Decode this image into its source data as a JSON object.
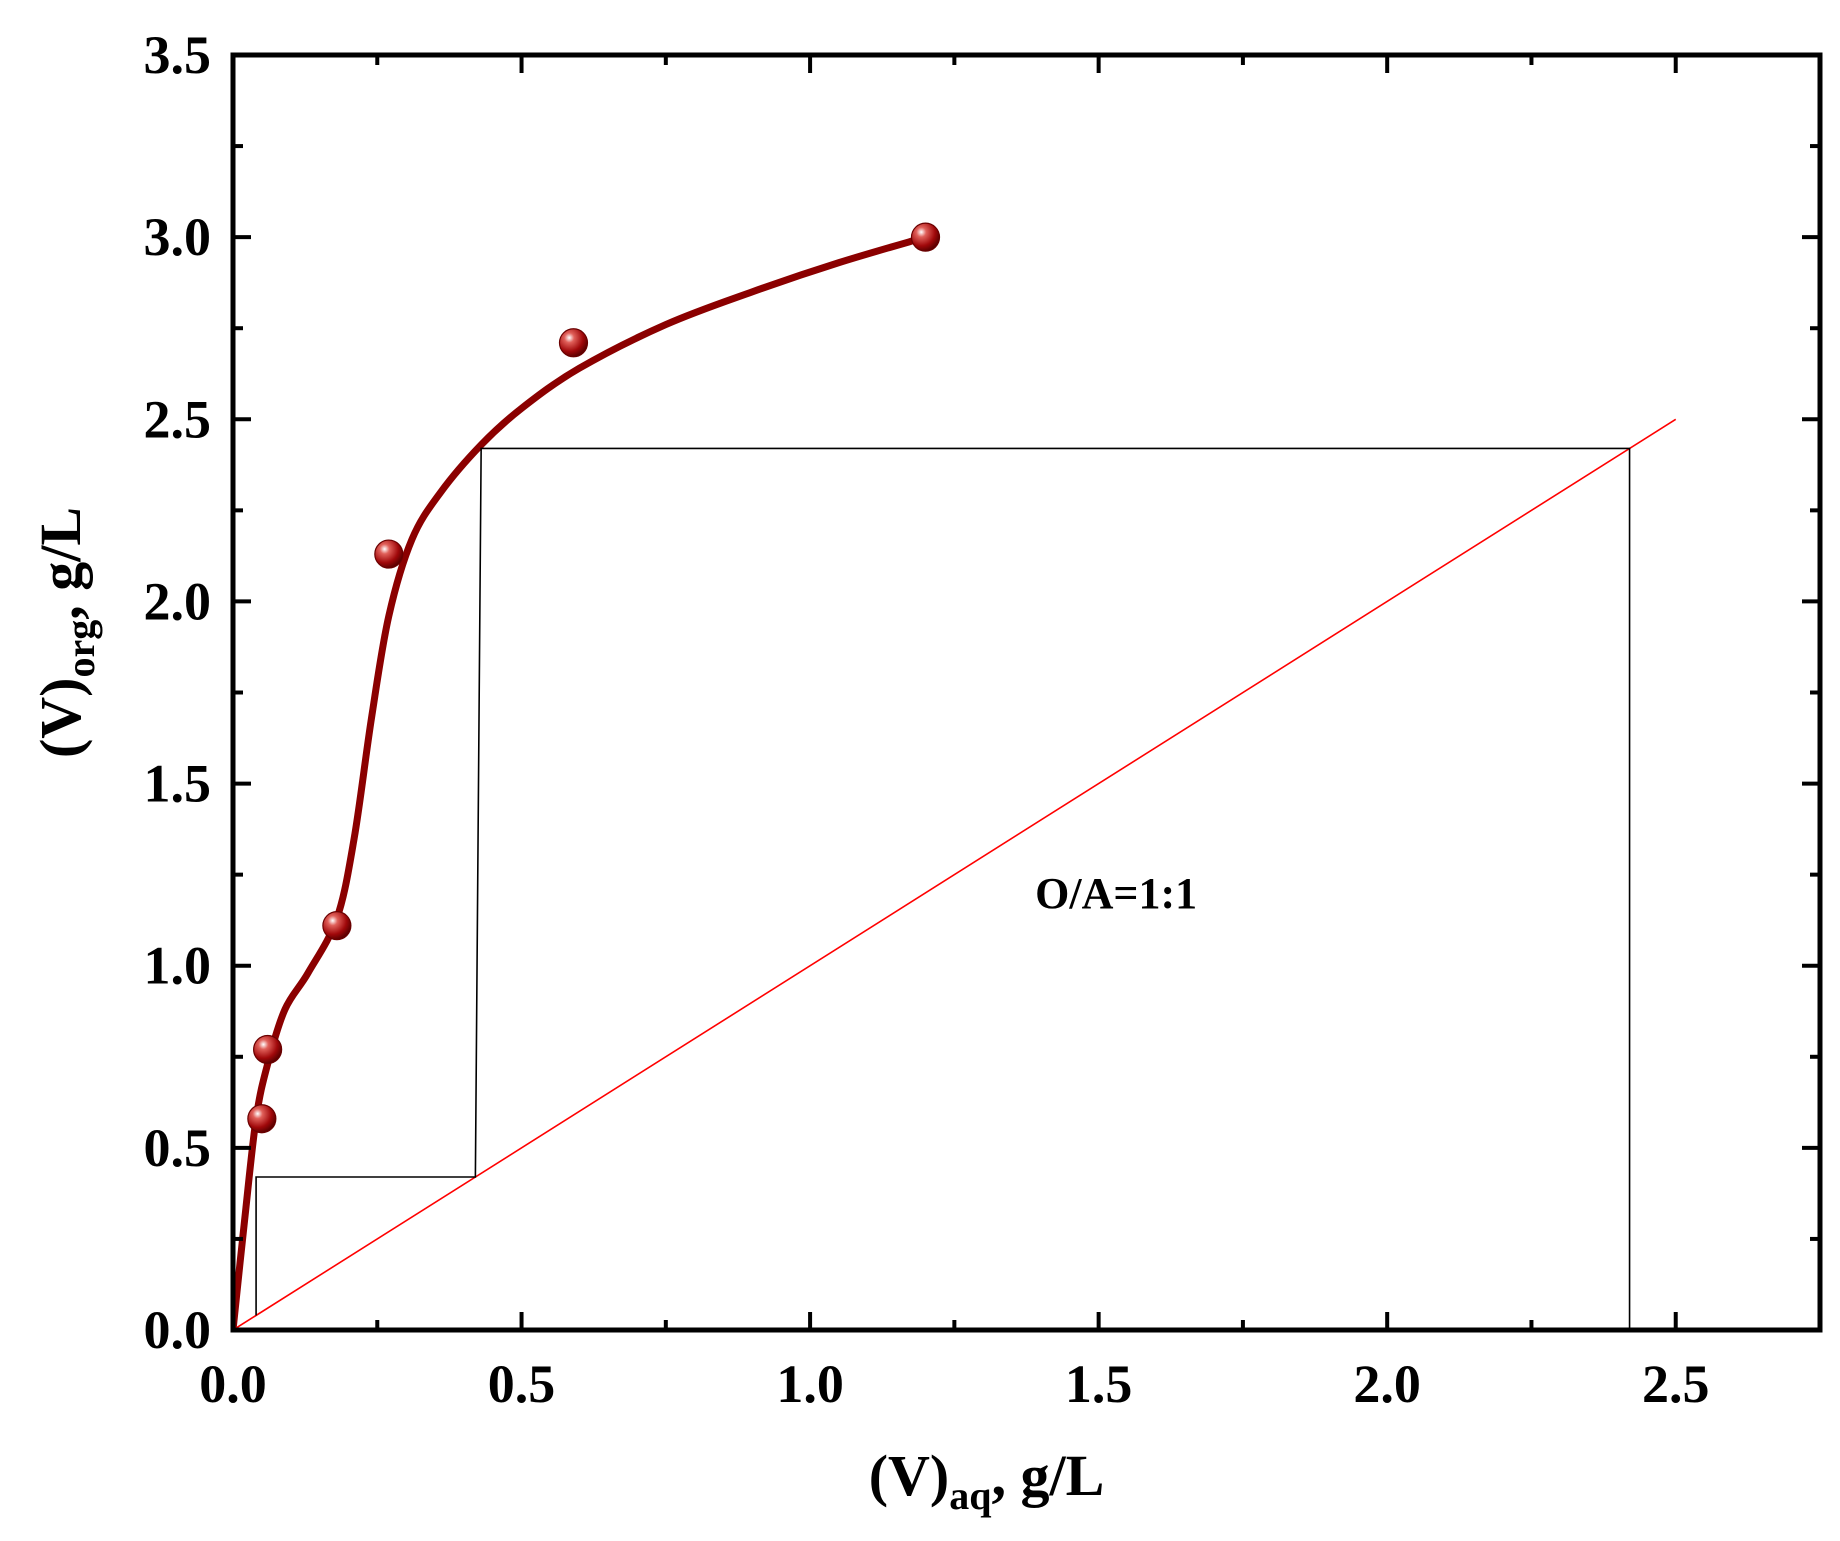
{
  "chart_data": {
    "type": "scatter",
    "xlabel": "(V)aq, g/L",
    "ylabel": "(V)org, g/L",
    "xlabel_parts": {
      "main": "(V)",
      "sub": "aq",
      "rest": ", g/L"
    },
    "ylabel_parts": {
      "main": "(V)",
      "sub": "org",
      "rest": ", g/L"
    },
    "xlim": [
      0.0,
      2.75
    ],
    "ylim": [
      0.0,
      3.5
    ],
    "x_ticks": [
      0.0,
      0.5,
      1.0,
      1.5,
      2.0,
      2.5
    ],
    "x_tick_labels": [
      "0.0",
      "0.5",
      "1.0",
      "1.5",
      "2.0",
      "2.5"
    ],
    "y_ticks": [
      0.0,
      0.5,
      1.0,
      1.5,
      2.0,
      2.5,
      3.0,
      3.5
    ],
    "y_tick_labels": [
      "0.0",
      "0.5",
      "1.0",
      "1.5",
      "2.0",
      "2.5",
      "3.0",
      "3.5"
    ],
    "grid": false,
    "series": [
      {
        "kind": "points",
        "color": "#8b0000",
        "x": [
          0.05,
          0.06,
          0.18,
          0.27,
          0.59,
          1.2
        ],
        "y": [
          0.58,
          0.77,
          1.11,
          2.13,
          2.71,
          3.0
        ]
      },
      {
        "kind": "fit-curve",
        "color": "#8b0000",
        "x": [
          0.0,
          0.02,
          0.04,
          0.06,
          0.09,
          0.13,
          0.18,
          0.21,
          0.24,
          0.27,
          0.31,
          0.36,
          0.43,
          0.5,
          0.6,
          0.75,
          0.9,
          1.05,
          1.2
        ],
        "y": [
          0.0,
          0.3,
          0.58,
          0.73,
          0.88,
          0.98,
          1.13,
          1.35,
          1.68,
          1.96,
          2.17,
          2.3,
          2.43,
          2.53,
          2.64,
          2.76,
          2.85,
          2.93,
          3.0
        ]
      },
      {
        "kind": "operating-line",
        "color": "#ff0000",
        "x": [
          0.0,
          2.5
        ],
        "y": [
          0.0,
          2.5
        ]
      },
      {
        "kind": "stage-steps",
        "color": "#000000",
        "x": [
          0.04,
          0.04,
          0.42,
          0.42,
          0.43,
          2.42,
          2.42
        ],
        "y": [
          0.04,
          0.42,
          0.42,
          0.42,
          2.42,
          2.42,
          0.0
        ]
      }
    ],
    "annotations": [
      {
        "text": "O/A=1:1",
        "x": 1.39,
        "y": 1.2
      }
    ]
  }
}
